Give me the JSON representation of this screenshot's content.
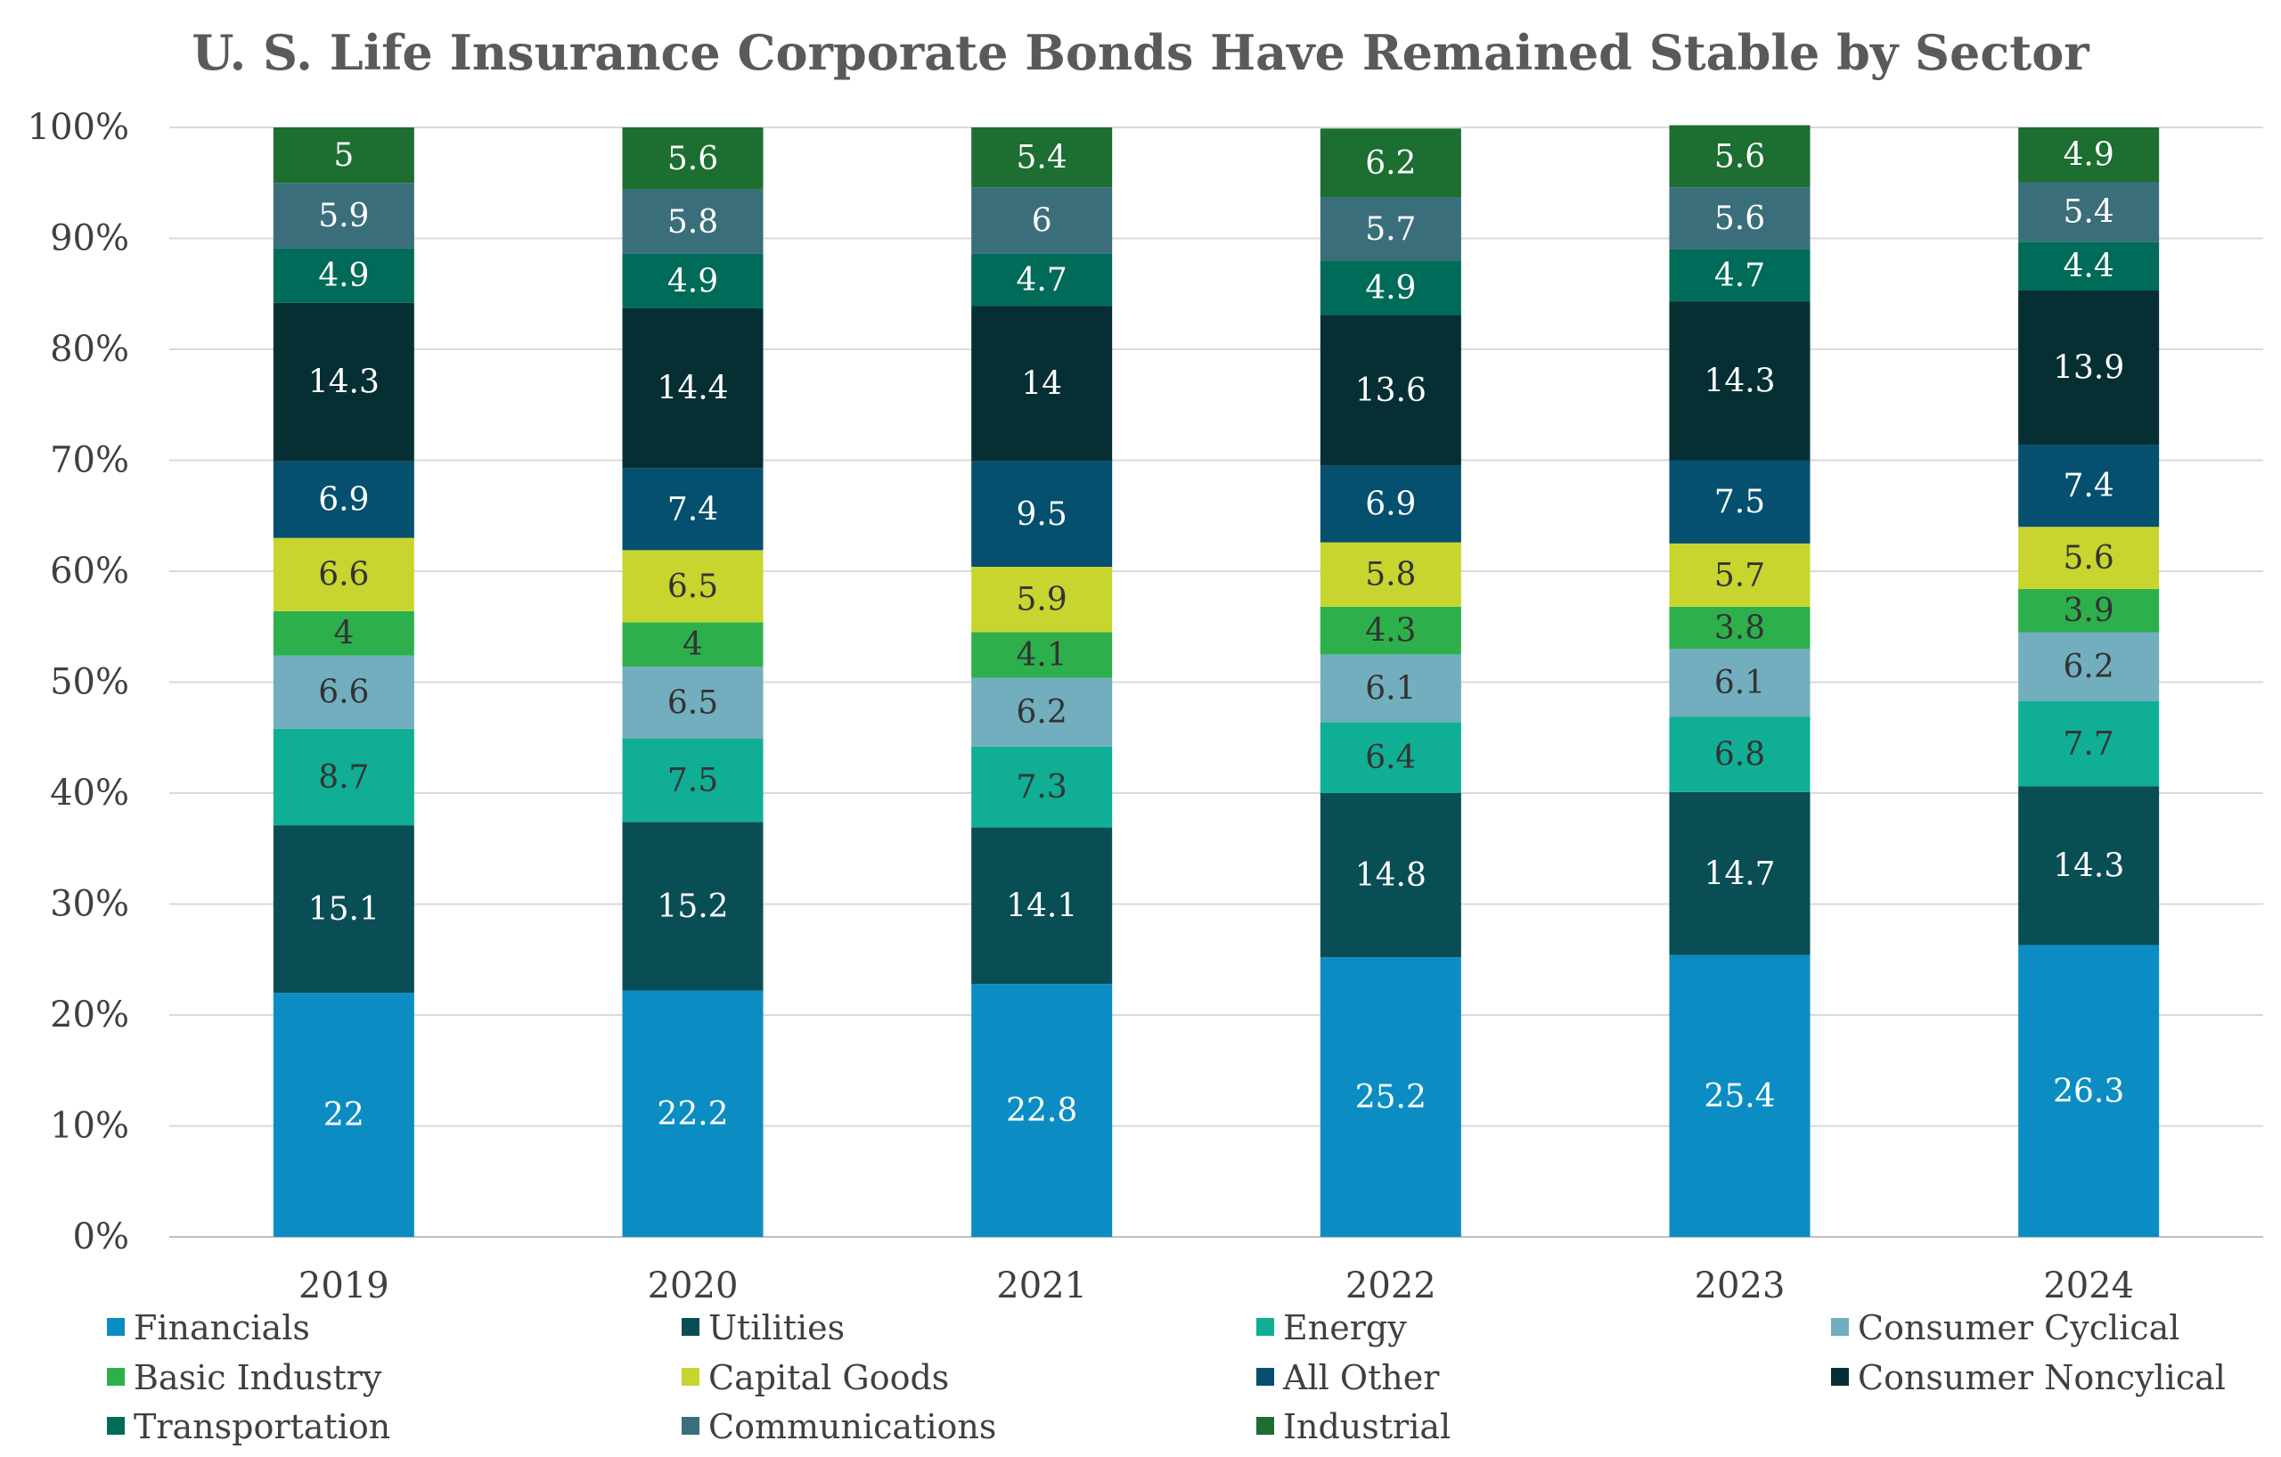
{
  "chart_data": {
    "type": "bar",
    "stacked": true,
    "title": "U. S. Life Insurance Corporate Bonds Have Remained Stable by Sector",
    "xlabel": "",
    "ylabel": "",
    "ylim": [
      0,
      100
    ],
    "yticks": [
      "0%",
      "10%",
      "20%",
      "30%",
      "40%",
      "50%",
      "60%",
      "70%",
      "80%",
      "90%",
      "100%"
    ],
    "categories": [
      "2019",
      "2020",
      "2021",
      "2022",
      "2023",
      "2024"
    ],
    "legend_position": "bottom",
    "series": [
      {
        "name": "Financials",
        "color": "#0b8dc4",
        "label_color": "#ffffff",
        "values": [
          22,
          22.2,
          22.8,
          25.2,
          25.4,
          26.3
        ]
      },
      {
        "name": "Utilities",
        "color": "#0a4e55",
        "label_color": "#ffffff",
        "values": [
          15.1,
          15.2,
          14.1,
          14.8,
          14.7,
          14.3
        ]
      },
      {
        "name": "Energy",
        "color": "#10ae94",
        "label_color": "#333333",
        "values": [
          8.7,
          7.5,
          7.3,
          6.4,
          6.8,
          7.7
        ]
      },
      {
        "name": "Consumer Cyclical",
        "color": "#72aebe",
        "label_color": "#333333",
        "values": [
          6.6,
          6.5,
          6.2,
          6.1,
          6.1,
          6.2
        ]
      },
      {
        "name": "Basic Industry",
        "color": "#2db04b",
        "label_color": "#333333",
        "values": [
          4,
          4,
          4.1,
          4.3,
          3.8,
          3.9
        ]
      },
      {
        "name": "Capital Goods",
        "color": "#c7d52e",
        "label_color": "#333333",
        "values": [
          6.6,
          6.5,
          5.9,
          5.8,
          5.7,
          5.6
        ]
      },
      {
        "name": "All Other",
        "color": "#05506e",
        "label_color": "#ffffff",
        "values": [
          6.9,
          7.4,
          9.5,
          6.9,
          7.5,
          7.4
        ]
      },
      {
        "name": "Consumer Noncylical",
        "color": "#062f33",
        "label_color": "#ffffff",
        "values": [
          14.3,
          14.4,
          14,
          13.6,
          14.3,
          13.9
        ]
      },
      {
        "name": "Transportation",
        "color": "#006b58",
        "label_color": "#ffffff",
        "values": [
          4.9,
          4.9,
          4.7,
          4.9,
          4.7,
          4.4
        ]
      },
      {
        "name": "Communications",
        "color": "#3a6e7a",
        "label_color": "#ffffff",
        "values": [
          5.9,
          5.8,
          6,
          5.7,
          5.6,
          5.4
        ]
      },
      {
        "name": "Industrial",
        "color": "#1d6e31",
        "label_color": "#ffffff",
        "values": [
          5,
          5.6,
          5.4,
          6.2,
          5.6,
          4.9
        ]
      }
    ]
  }
}
